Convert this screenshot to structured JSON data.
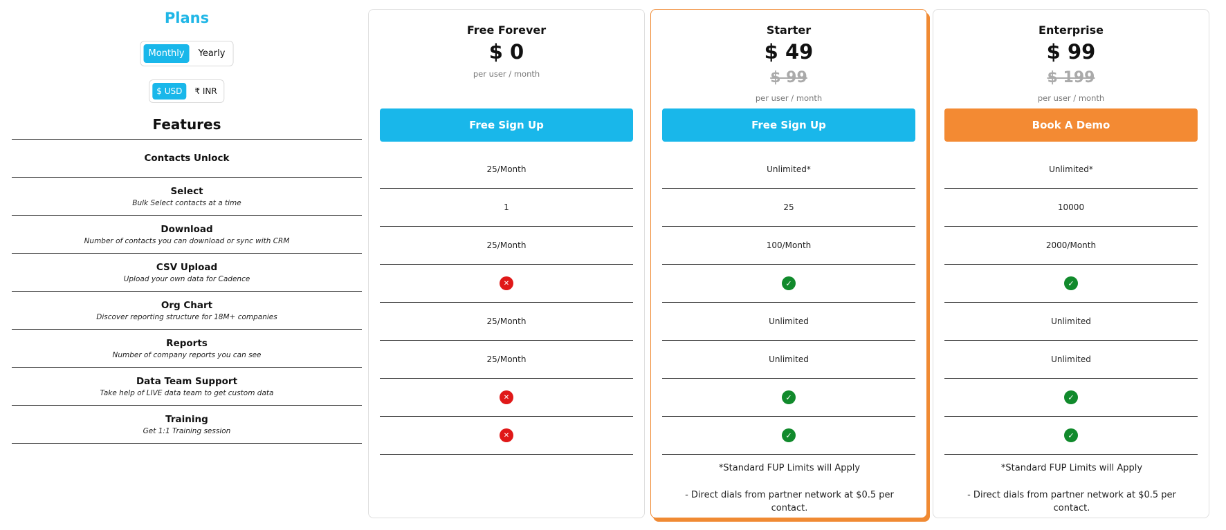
{
  "sidebar": {
    "plans_title": "Plans",
    "billing_options": [
      "Monthly",
      "Yearly"
    ],
    "billing_selected": "Monthly",
    "currency_options": [
      "$ USD",
      "₹ INR"
    ],
    "currency_selected": "$ USD",
    "features_heading": "Features",
    "features": [
      {
        "name": "Contacts Unlock",
        "desc": ""
      },
      {
        "name": "Select",
        "desc": "Bulk Select contacts at a time"
      },
      {
        "name": "Download",
        "desc": "Number of contacts you can download or sync with CRM"
      },
      {
        "name": "CSV Upload",
        "desc": "Upload your own data for Cadence"
      },
      {
        "name": "Org Chart",
        "desc": "Discover reporting structure for 18M+ companies"
      },
      {
        "name": "Reports",
        "desc": "Number of company reports you can see"
      },
      {
        "name": "Data Team Support",
        "desc": "Take help of LIVE data team to get custom data"
      },
      {
        "name": "Training",
        "desc": "Get 1:1 Training session"
      }
    ]
  },
  "plans": [
    {
      "name": "Free Forever",
      "price": "$ 0",
      "old_price": "",
      "unit": "per user / month",
      "cta": "Free Sign Up",
      "values": [
        "25/Month",
        "1",
        "25/Month",
        "no-icon",
        "25/Month",
        "25/Month",
        "no-icon",
        "no-icon"
      ],
      "notes": []
    },
    {
      "name": "Starter",
      "price": "$ 49",
      "old_price": "$ 99",
      "unit": "per user / month",
      "cta": "Free Sign Up",
      "values": [
        "Unlimited*",
        "25",
        "100/Month",
        "check-icon",
        "Unlimited",
        "Unlimited",
        "check-icon",
        "check-icon"
      ],
      "notes": [
        "*Standard FUP Limits will Apply",
        "- Direct dials from partner network at $0.5 per contact."
      ]
    },
    {
      "name": "Enterprise",
      "price": "$ 99",
      "old_price": "$ 199",
      "unit": "per user / month",
      "cta": "Book A Demo",
      "values": [
        "Unlimited*",
        "10000",
        "2000/Month",
        "check-icon",
        "Unlimited",
        "Unlimited",
        "check-icon",
        "check-icon"
      ],
      "notes": [
        "*Standard FUP Limits will Apply",
        "- Direct dials from partner network at $0.5 per contact."
      ]
    }
  ],
  "colors": {
    "accent_blue": "#19b7ea",
    "accent_orange": "#f38a33",
    "check_green": "#118a2c",
    "cross_red": "#e01818"
  }
}
